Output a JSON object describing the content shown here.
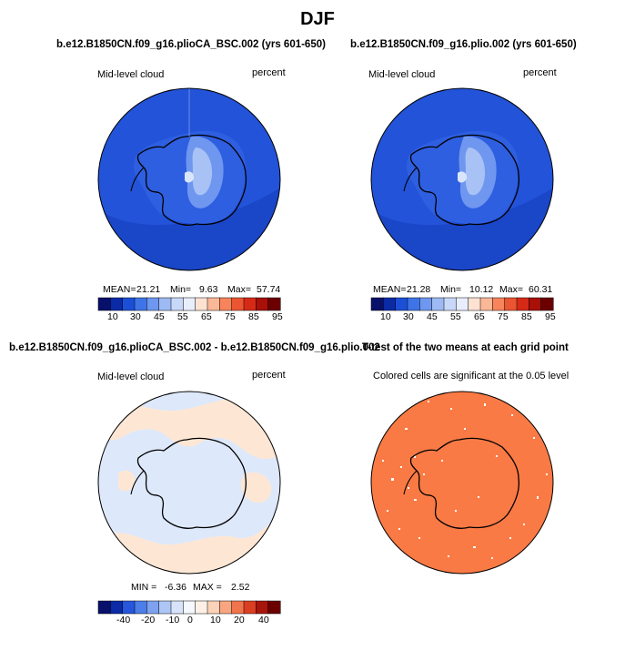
{
  "page_title": "DJF",
  "panels": [
    {
      "title": "b.e12.B1850CN.f09_g16.plioCA_BSC.002 (yrs 601-650)",
      "left_label": "Mid-level cloud",
      "right_label": "percent",
      "stats": {
        "mean_label": "MEAN=",
        "mean": "21.21",
        "min_label": "Min=",
        "min": "9.63",
        "max_label": "Max=",
        "max": "57.74"
      },
      "colorbar_labels": [
        "10",
        "30",
        "45",
        "55",
        "65",
        "75",
        "85",
        "95"
      ]
    },
    {
      "title": "b.e12.B1850CN.f09_g16.plio.002 (yrs 601-650)",
      "left_label": "Mid-level cloud",
      "right_label": "percent",
      "stats": {
        "mean_label": "MEAN=",
        "mean": "21.28",
        "min_label": "Min=",
        "min": "10.12",
        "max_label": "Max=",
        "max": "60.31"
      },
      "colorbar_labels": [
        "10",
        "30",
        "45",
        "55",
        "65",
        "75",
        "85",
        "95"
      ]
    },
    {
      "title": "b.e12.B1850CN.f09_g16.plioCA_BSC.002 - b.e12.B1850CN.f09_g16.plio.002",
      "left_label": "Mid-level cloud",
      "right_label": "percent",
      "stats": {
        "min_label": "MIN =",
        "min": "-6.36",
        "max_label": "MAX =",
        "max": "2.52"
      },
      "colorbar_labels": [
        "-40",
        "-20",
        "-10",
        "0",
        "10",
        "20",
        "40"
      ]
    },
    {
      "title": "T-test of the two means at each grid point",
      "subtitle": "Colored cells are significant at the 0.05 level"
    }
  ],
  "colors": {
    "ocean_blue": "#1f4fd6",
    "diff_light_blue": "#dde8fb",
    "diff_light_peach": "#fde7d4",
    "ttest_orange": "#fa7a45",
    "seq_scale": [
      "#08106b",
      "#0a2aa6",
      "#1c4fd8",
      "#3f74e8",
      "#6e97ef",
      "#9dbaf4",
      "#c8d8f8",
      "#e8eefc",
      "#fde1d1",
      "#fbb898",
      "#f8845c",
      "#ec5531",
      "#d62a17",
      "#a81008",
      "#6b0000"
    ],
    "div_scale": [
      "#08106b",
      "#0a2aa6",
      "#2556dc",
      "#4c7de8",
      "#7ea2f0",
      "#aec6f6",
      "#d8e3fa",
      "#f5f8fe",
      "#fef0e6",
      "#fcd2b8",
      "#f9a680",
      "#f1744d",
      "#db3f22",
      "#a8150a",
      "#6b0000"
    ]
  }
}
